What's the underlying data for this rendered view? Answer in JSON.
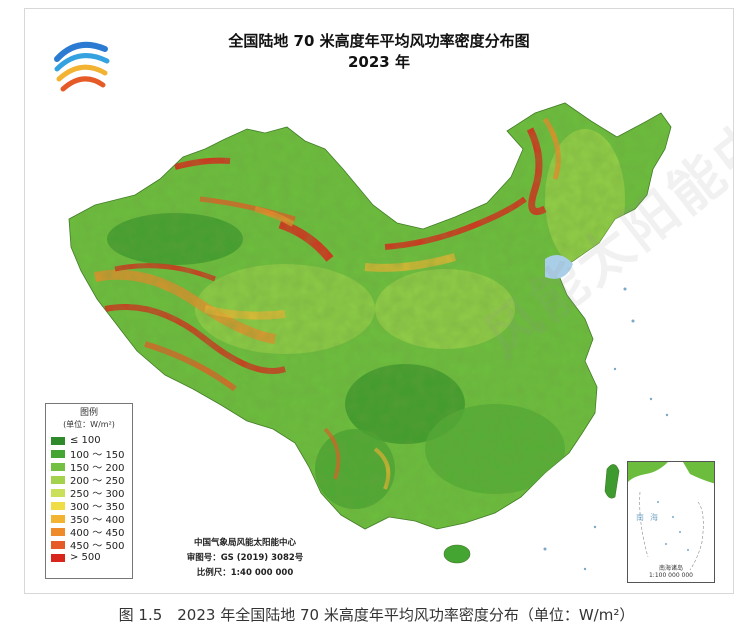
{
  "title": {
    "line1": "全国陆地 70 米高度年平均风功率密度分布图",
    "line2": "2023 年"
  },
  "legend": {
    "title": "图例",
    "unit": "(单位：W/m²)",
    "items": [
      {
        "label": "≤ 100",
        "color": "#2f8a2a"
      },
      {
        "label": "100 ～ 150",
        "color": "#45a533"
      },
      {
        "label": "150 ～ 200",
        "color": "#74c043"
      },
      {
        "label": "200 ～ 250",
        "color": "#a4d24d"
      },
      {
        "label": "250 ～ 300",
        "color": "#cbe05a"
      },
      {
        "label": "300 ～ 350",
        "color": "#f0dc45"
      },
      {
        "label": "350 ～ 400",
        "color": "#f2b232"
      },
      {
        "label": "400 ～ 450",
        "color": "#ee8a2a"
      },
      {
        "label": "450 ～ 500",
        "color": "#e55a26"
      },
      {
        "label": "> 500",
        "color": "#d9261c"
      }
    ]
  },
  "credits": {
    "org": "中国气象局风能太阳能中心",
    "approval": "审图号：GS (2019) 3082号",
    "scale": "比例尺：1:40 000 000"
  },
  "inset": {
    "label": "南海",
    "caption1": "南海诸岛",
    "caption2": "1:100 000 000"
  },
  "watermark": "风能太阳能中心",
  "caption": "图 1.5　2023 年全国陆地 70 米高度年平均风功率密度分布（单位：W/m²）",
  "colors": {
    "sea": "#a9cfe8",
    "land_base": "#6cbc3e"
  }
}
